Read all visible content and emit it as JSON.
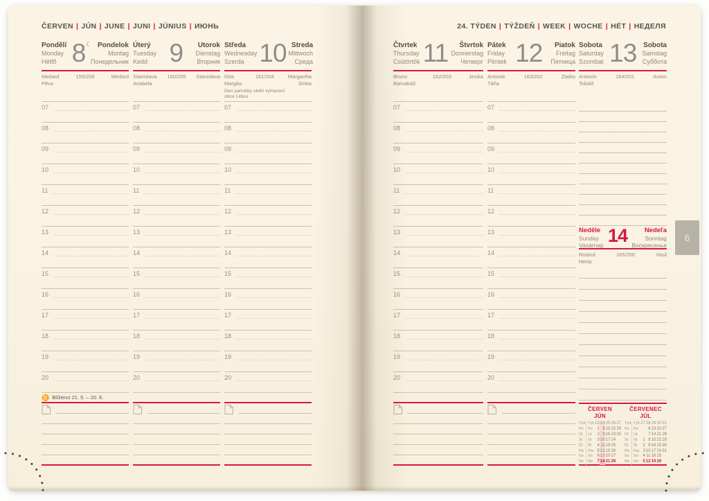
{
  "left_header_parts": [
    "ČERVEN",
    "JÚN",
    "JUNE",
    "JUNI",
    "JÚNIUS",
    "ИЮНЬ"
  ],
  "right_header_parts": [
    "24. TÝDEN",
    "TÝŽDEŇ",
    "WEEK",
    "WOCHE",
    "HÉT",
    "НЕДЕЛЯ"
  ],
  "header_separator": "|",
  "hours": [
    "07",
    "08",
    "09",
    "10",
    "11",
    "12",
    "13",
    "14",
    "15",
    "16",
    "17",
    "18",
    "19",
    "20"
  ],
  "zodiac_icon": "♊",
  "moon_icon": "☾",
  "tab_label": "6",
  "days": [
    {
      "id": "monday",
      "pos": "c1",
      "layout": "hours",
      "primary_left": "Pondělí",
      "secondary_left": [
        "Monday",
        "Hétfő"
      ],
      "number": "8",
      "moon": true,
      "primary_right": "Pondelok",
      "secondary_right": [
        "Montag",
        "Понедельник"
      ],
      "saints_left": [
        "Medard",
        "Pěva"
      ],
      "day_of_year": "159/206",
      "saints_right": [
        "Medard"
      ],
      "holiday_note": "",
      "zodiac_label": "Blíženci 21. 5. – 20. 6."
    },
    {
      "id": "tuesday",
      "pos": "c2",
      "layout": "hours",
      "primary_left": "Úterý",
      "secondary_left": [
        "Tuesday",
        "Kedd"
      ],
      "number": "9",
      "moon": false,
      "primary_right": "Utorok",
      "secondary_right": [
        "Dienstag",
        "Вторник"
      ],
      "saints_left": [
        "Stanislava",
        "Anabela"
      ],
      "day_of_year": "160/205",
      "saints_right": [
        "Stanislava"
      ],
      "holiday_note": "",
      "zodiac_label": ""
    },
    {
      "id": "wednesday",
      "pos": "c3",
      "layout": "hours",
      "primary_left": "Středa",
      "secondary_left": [
        "Wednesday",
        "Szerda"
      ],
      "number": "10",
      "moon": false,
      "primary_right": "Streda",
      "secondary_right": [
        "Mittwoch",
        "Среда"
      ],
      "saints_left": [
        "Gita",
        "Margita"
      ],
      "day_of_year": "161/204",
      "saints_right": [
        "Margaréta",
        "Gréta"
      ],
      "holiday_note": "Den památky obětí vyhlazení obce Lidice",
      "zodiac_label": ""
    },
    {
      "id": "thursday",
      "pos": "c4",
      "layout": "hours",
      "primary_left": "Čtvrtek",
      "secondary_left": [
        "Thursday",
        "Csütörtök"
      ],
      "number": "11",
      "moon": false,
      "primary_right": "Štvrtok",
      "secondary_right": [
        "Donnerstag",
        "Четверг"
      ],
      "saints_left": [
        "Bruno",
        "Barnabáš"
      ],
      "day_of_year": "162/203",
      "saints_right": [
        "Jesika"
      ],
      "holiday_note": "",
      "zodiac_label": ""
    },
    {
      "id": "friday",
      "pos": "c5",
      "layout": "hours",
      "primary_left": "Pátek",
      "secondary_left": [
        "Friday",
        "Péntek"
      ],
      "number": "12",
      "moon": false,
      "primary_right": "Piatok",
      "secondary_right": [
        "Freitag",
        "Пятница"
      ],
      "saints_left": [
        "Antonie",
        "Táňa"
      ],
      "day_of_year": "163/202",
      "saints_right": [
        "Zlatko"
      ],
      "holiday_note": "",
      "zodiac_label": ""
    },
    {
      "id": "saturday",
      "pos": "c6",
      "layout": "plain",
      "primary_left": "Sobota",
      "secondary_left": [
        "Saturday",
        "Szombat"
      ],
      "number": "13",
      "moon": false,
      "primary_right": "Sobota",
      "secondary_right": [
        "Samstag",
        "Суббота"
      ],
      "saints_left": [
        "Antonín",
        "Tobiáš"
      ],
      "day_of_year": "164/201",
      "saints_right": [
        "Anton"
      ],
      "holiday_note": "",
      "zodiac_label": ""
    }
  ],
  "sunday": {
    "primary_left": "Neděle",
    "secondary_left": [
      "Sunday",
      "Vasárnap"
    ],
    "number": "14",
    "primary_right": "Nedeľa",
    "secondary_right": [
      "Sonntag",
      "Воскресенье"
    ],
    "saints_left": [
      "Roland",
      "Herta"
    ],
    "day_of_year": "165/200",
    "saints_right": [
      "Vasil"
    ]
  },
  "mini_calendar_row_labels": [
    [
      "Týd",
      "Týž"
    ],
    [
      "Po",
      "Po"
    ],
    [
      "Út",
      "Ut"
    ],
    [
      "St",
      "St"
    ],
    [
      "Čt",
      "Št"
    ],
    [
      "Pá",
      "Pia"
    ],
    [
      "So",
      "So"
    ],
    [
      "Ne",
      "Ne"
    ]
  ],
  "mini_calendars": [
    {
      "id": "june",
      "title1": "ČERVEN",
      "title2": "JÚN",
      "weeks": [
        "23",
        "24",
        "25",
        "26",
        "27"
      ],
      "rows": [
        [
          "1",
          "8",
          "15",
          "22",
          "29"
        ],
        [
          "2",
          "9",
          "16",
          "23",
          "30"
        ],
        [
          "3",
          "10",
          "17",
          "24",
          ""
        ],
        [
          "4",
          "11",
          "18",
          "25",
          ""
        ],
        [
          "5",
          "12",
          "19",
          "26",
          ""
        ],
        [
          "6",
          "13",
          "20",
          "27",
          ""
        ],
        [
          "7",
          "14",
          "21",
          "28",
          ""
        ]
      ],
      "highlight_week": "24",
      "highlight_day": "14"
    },
    {
      "id": "july",
      "title1": "ČERVENEC",
      "title2": "JÚL",
      "weeks": [
        "27",
        "28",
        "29",
        "30",
        "31"
      ],
      "rows": [
        [
          "",
          "6",
          "13",
          "20",
          "27"
        ],
        [
          "",
          "7",
          "14",
          "21",
          "28"
        ],
        [
          "1",
          "8",
          "15",
          "22",
          "29"
        ],
        [
          "2",
          "9",
          "16",
          "23",
          "30"
        ],
        [
          "3",
          "10",
          "17",
          "24",
          "31"
        ],
        [
          "4",
          "11",
          "18",
          "25",
          ""
        ],
        [
          "5",
          "12",
          "19",
          "26",
          ""
        ]
      ],
      "highlight_week": "",
      "highlight_day": ""
    }
  ]
}
